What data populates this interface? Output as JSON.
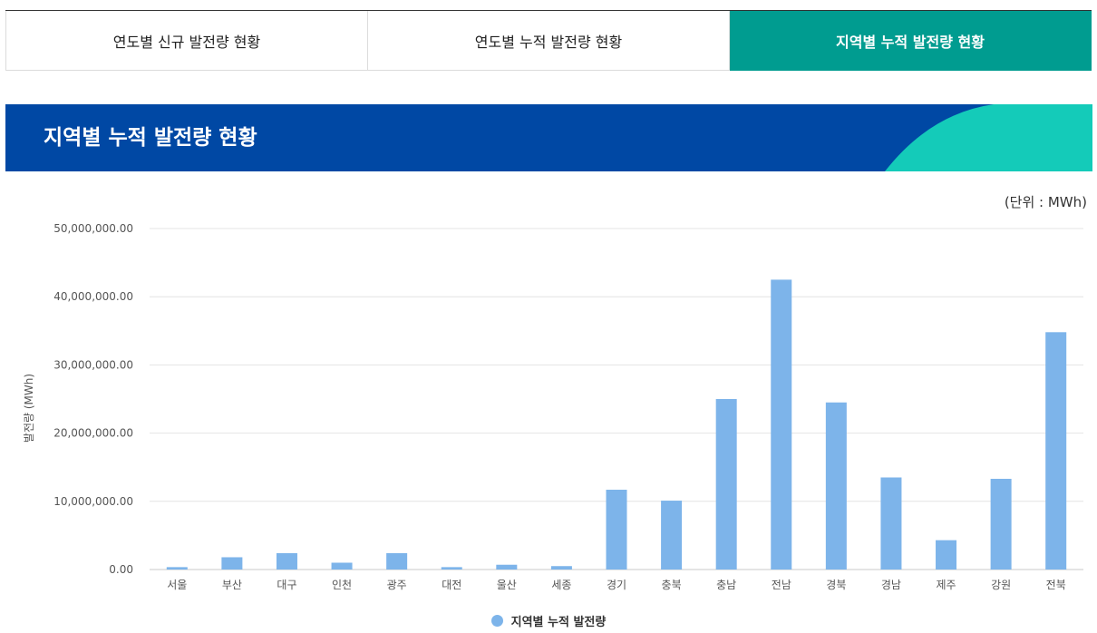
{
  "tabs": [
    {
      "label": "연도별 신규 발전량 현황",
      "active": false
    },
    {
      "label": "연도별 누적 발전량 현황",
      "active": false
    },
    {
      "label": "지역별 누적 발전량 현황",
      "active": true
    }
  ],
  "banner": {
    "title": "지역별 누적 발전량 현황"
  },
  "unit_label": "(단위 : MWh)",
  "colors": {
    "tab_active": "#009c90",
    "banner": "#0048a4",
    "banner_accent": "#14cbb9",
    "bar": "#7db4ea"
  },
  "chart_data": {
    "type": "bar",
    "categories": [
      "서울",
      "부산",
      "대구",
      "인천",
      "광주",
      "대전",
      "울산",
      "세종",
      "경기",
      "충북",
      "충남",
      "전남",
      "경북",
      "경남",
      "제주",
      "강원",
      "전북"
    ],
    "series": [
      {
        "name": "지역별 누적 발전량",
        "values": [
          350000,
          1800000,
          2400000,
          1000000,
          2400000,
          350000,
          700000,
          500000,
          11700000,
          10100000,
          25000000,
          42500000,
          24500000,
          13500000,
          4300000,
          13300000,
          34800000
        ]
      }
    ],
    "ylabel": "발전량 (MWh)",
    "yticks": [
      "0.00",
      "10,000,000.00",
      "20,000,000.00",
      "30,000,000.00",
      "40,000,000.00",
      "50,000,000.00"
    ],
    "ylim": [
      0,
      50000000
    ],
    "grid": true,
    "legend_position": "bottom"
  }
}
